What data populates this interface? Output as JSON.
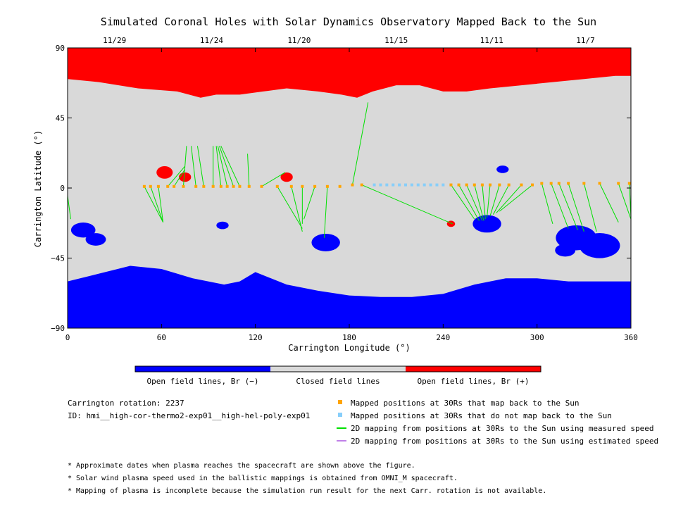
{
  "chart_data": {
    "type": "heatmap",
    "title": "Simulated Coronal Holes with Solar Dynamics Observatory Mapped Back to the Sun",
    "xlabel": "Carrington Longitude (°)",
    "ylabel": "Carrington Latitude (°)",
    "xlim": [
      0,
      360
    ],
    "ylim": [
      -90,
      90
    ],
    "xticks": [
      "0",
      "60",
      "120",
      "180",
      "240",
      "300",
      "360"
    ],
    "xtick_values": [
      0,
      60,
      120,
      180,
      240,
      300,
      360
    ],
    "yticks": [
      "90",
      "45",
      "0",
      "−45",
      "−90"
    ],
    "ytick_values": [
      90,
      45,
      0,
      -45,
      -90
    ],
    "top_axis_dates": [
      {
        "label": "11/29",
        "lon": 30
      },
      {
        "label": "11/24",
        "lon": 92
      },
      {
        "label": "11/20",
        "lon": 148
      },
      {
        "label": "11/15",
        "lon": 210
      },
      {
        "label": "11/11",
        "lon": 271
      },
      {
        "label": "11/7",
        "lon": 331
      }
    ],
    "colors": {
      "open_negative": "#0000ff",
      "closed": "#d9d9d9",
      "open_positive": "#ff0000",
      "mapped": "#ffa500",
      "unmapped": "#87cefa",
      "measured_line": "#00e000",
      "estimated_line": "#c080e8"
    },
    "regions": {
      "north_polar_cap": {
        "field": "positive",
        "boundary": [
          [
            0,
            70
          ],
          [
            20,
            68
          ],
          [
            45,
            64
          ],
          [
            70,
            62
          ],
          [
            85,
            58
          ],
          [
            95,
            60
          ],
          [
            110,
            60
          ],
          [
            125,
            62
          ],
          [
            140,
            64
          ],
          [
            160,
            62
          ],
          [
            175,
            60
          ],
          [
            185,
            58
          ],
          [
            195,
            62
          ],
          [
            210,
            66
          ],
          [
            225,
            66
          ],
          [
            240,
            62
          ],
          [
            255,
            62
          ],
          [
            270,
            64
          ],
          [
            290,
            66
          ],
          [
            310,
            68
          ],
          [
            330,
            70
          ],
          [
            350,
            72
          ],
          [
            360,
            72
          ]
        ]
      },
      "south_polar_cap": {
        "field": "negative",
        "boundary": [
          [
            0,
            -60
          ],
          [
            20,
            -55
          ],
          [
            40,
            -50
          ],
          [
            60,
            -52
          ],
          [
            80,
            -58
          ],
          [
            100,
            -62
          ],
          [
            110,
            -60
          ],
          [
            120,
            -54
          ],
          [
            130,
            -58
          ],
          [
            140,
            -62
          ],
          [
            160,
            -66
          ],
          [
            180,
            -69
          ],
          [
            200,
            -70
          ],
          [
            220,
            -70
          ],
          [
            240,
            -68
          ],
          [
            260,
            -62
          ],
          [
            280,
            -58
          ],
          [
            300,
            -58
          ],
          [
            320,
            -60
          ],
          [
            340,
            -60
          ],
          [
            360,
            -60
          ]
        ]
      },
      "positive_patches": [
        {
          "lon": 62,
          "lat": 10,
          "r": 4
        },
        {
          "lon": 75,
          "lat": 7,
          "r": 3
        },
        {
          "lon": 140,
          "lat": 7,
          "r": 3
        },
        {
          "lon": 245,
          "lat": -23,
          "r": 2
        }
      ],
      "negative_patches": [
        {
          "lon": 10,
          "lat": -27,
          "r": 6
        },
        {
          "lon": 18,
          "lat": -33,
          "r": 5
        },
        {
          "lon": 99,
          "lat": -24,
          "r": 3
        },
        {
          "lon": 165,
          "lat": -35,
          "r": 7
        },
        {
          "lon": 268,
          "lat": -23,
          "r": 7
        },
        {
          "lon": 278,
          "lat": 12,
          "r": 3
        },
        {
          "lon": 325,
          "lat": -32,
          "r": 10
        },
        {
          "lon": 340,
          "lat": -37,
          "r": 10
        },
        {
          "lon": 318,
          "lat": -40,
          "r": 5
        }
      ]
    },
    "mapped_points": [
      {
        "lon": 49,
        "lat": 1,
        "mapped": true
      },
      {
        "lon": 53,
        "lat": 1,
        "mapped": true
      },
      {
        "lon": 58,
        "lat": 1,
        "mapped": true
      },
      {
        "lon": 64,
        "lat": 1,
        "mapped": true
      },
      {
        "lon": 68,
        "lat": 1,
        "mapped": true
      },
      {
        "lon": 74,
        "lat": 1,
        "mapped": true
      },
      {
        "lon": 82,
        "lat": 1,
        "mapped": true
      },
      {
        "lon": 87,
        "lat": 1,
        "mapped": true
      },
      {
        "lon": 93,
        "lat": 1,
        "mapped": true
      },
      {
        "lon": 98,
        "lat": 1,
        "mapped": true
      },
      {
        "lon": 102,
        "lat": 1,
        "mapped": true
      },
      {
        "lon": 106,
        "lat": 1,
        "mapped": true
      },
      {
        "lon": 110,
        "lat": 1,
        "mapped": true
      },
      {
        "lon": 116,
        "lat": 1,
        "mapped": true
      },
      {
        "lon": 124,
        "lat": 1,
        "mapped": true
      },
      {
        "lon": 134,
        "lat": 1,
        "mapped": true
      },
      {
        "lon": 143,
        "lat": 1,
        "mapped": true
      },
      {
        "lon": 150,
        "lat": 1,
        "mapped": true
      },
      {
        "lon": 158,
        "lat": 1,
        "mapped": true
      },
      {
        "lon": 166,
        "lat": 1,
        "mapped": true
      },
      {
        "lon": 174,
        "lat": 1,
        "mapped": true
      },
      {
        "lon": 182,
        "lat": 2,
        "mapped": true
      },
      {
        "lon": 188,
        "lat": 2,
        "mapped": true
      },
      {
        "lon": 196,
        "lat": 2,
        "mapped": false
      },
      {
        "lon": 200,
        "lat": 2,
        "mapped": false
      },
      {
        "lon": 204,
        "lat": 2,
        "mapped": false
      },
      {
        "lon": 208,
        "lat": 2,
        "mapped": false
      },
      {
        "lon": 212,
        "lat": 2,
        "mapped": false
      },
      {
        "lon": 216,
        "lat": 2,
        "mapped": false
      },
      {
        "lon": 220,
        "lat": 2,
        "mapped": false
      },
      {
        "lon": 224,
        "lat": 2,
        "mapped": false
      },
      {
        "lon": 228,
        "lat": 2,
        "mapped": false
      },
      {
        "lon": 232,
        "lat": 2,
        "mapped": false
      },
      {
        "lon": 236,
        "lat": 2,
        "mapped": false
      },
      {
        "lon": 240,
        "lat": 2,
        "mapped": false
      },
      {
        "lon": 245,
        "lat": 2,
        "mapped": true
      },
      {
        "lon": 250,
        "lat": 2,
        "mapped": true
      },
      {
        "lon": 255,
        "lat": 2,
        "mapped": true
      },
      {
        "lon": 260,
        "lat": 2,
        "mapped": true
      },
      {
        "lon": 265,
        "lat": 2,
        "mapped": true
      },
      {
        "lon": 270,
        "lat": 2,
        "mapped": true
      },
      {
        "lon": 276,
        "lat": 2,
        "mapped": true
      },
      {
        "lon": 282,
        "lat": 2,
        "mapped": true
      },
      {
        "lon": 290,
        "lat": 2,
        "mapped": true
      },
      {
        "lon": 297,
        "lat": 2,
        "mapped": true
      },
      {
        "lon": 303,
        "lat": 3,
        "mapped": true
      },
      {
        "lon": 309,
        "lat": 3,
        "mapped": true
      },
      {
        "lon": 314,
        "lat": 3,
        "mapped": true
      },
      {
        "lon": 320,
        "lat": 3,
        "mapped": true
      },
      {
        "lon": 330,
        "lat": 3,
        "mapped": true
      },
      {
        "lon": 340,
        "lat": 3,
        "mapped": true
      },
      {
        "lon": 352,
        "lat": 3,
        "mapped": true
      },
      {
        "lon": 359,
        "lat": 3,
        "mapped": true
      }
    ],
    "field_lines": [
      {
        "from": [
          49,
          1
        ],
        "to": [
          61,
          -22
        ]
      },
      {
        "from": [
          53,
          1
        ],
        "to": [
          61,
          -22
        ]
      },
      {
        "from": [
          58,
          1
        ],
        "to": [
          61,
          -22
        ]
      },
      {
        "from": [
          64,
          1
        ],
        "to": [
          75,
          14
        ]
      },
      {
        "from": [
          68,
          1
        ],
        "to": [
          75,
          12
        ]
      },
      {
        "from": [
          74,
          1
        ],
        "to": [
          76,
          27
        ]
      },
      {
        "from": [
          82,
          1
        ],
        "to": [
          79,
          27
        ]
      },
      {
        "from": [
          87,
          1
        ],
        "to": [
          83,
          27
        ]
      },
      {
        "from": [
          93,
          1
        ],
        "to": [
          93,
          27
        ]
      },
      {
        "from": [
          98,
          1
        ],
        "to": [
          95,
          27
        ]
      },
      {
        "from": [
          102,
          1
        ],
        "to": [
          96,
          27
        ]
      },
      {
        "from": [
          106,
          1
        ],
        "to": [
          97,
          27
        ]
      },
      {
        "from": [
          110,
          1
        ],
        "to": [
          98,
          27
        ]
      },
      {
        "from": [
          116,
          1
        ],
        "to": [
          115,
          22
        ]
      },
      {
        "from": [
          124,
          1
        ],
        "to": [
          139,
          10
        ]
      },
      {
        "from": [
          134,
          1
        ],
        "to": [
          150,
          -26
        ]
      },
      {
        "from": [
          143,
          1
        ],
        "to": [
          150,
          -28
        ]
      },
      {
        "from": [
          150,
          1
        ],
        "to": [
          150,
          -23
        ]
      },
      {
        "from": [
          158,
          1
        ],
        "to": [
          151,
          -20
        ]
      },
      {
        "from": [
          166,
          1
        ],
        "to": [
          164,
          -32
        ]
      },
      {
        "from": [
          182,
          2
        ],
        "to": [
          192,
          55
        ]
      },
      {
        "from": [
          188,
          2
        ],
        "to": [
          246,
          -23
        ]
      },
      {
        "from": [
          245,
          2
        ],
        "to": [
          260,
          -20
        ]
      },
      {
        "from": [
          250,
          2
        ],
        "to": [
          263,
          -21
        ]
      },
      {
        "from": [
          255,
          2
        ],
        "to": [
          265,
          -21
        ]
      },
      {
        "from": [
          260,
          2
        ],
        "to": [
          266,
          -21
        ]
      },
      {
        "from": [
          265,
          2
        ],
        "to": [
          267,
          -20
        ]
      },
      {
        "from": [
          270,
          2
        ],
        "to": [
          268,
          -19
        ]
      },
      {
        "from": [
          276,
          2
        ],
        "to": [
          270,
          -18
        ]
      },
      {
        "from": [
          282,
          2
        ],
        "to": [
          272,
          -17
        ]
      },
      {
        "from": [
          290,
          2
        ],
        "to": [
          274,
          -16
        ]
      },
      {
        "from": [
          297,
          2
        ],
        "to": [
          276,
          -15
        ]
      },
      {
        "from": [
          303,
          3
        ],
        "to": [
          310,
          -23
        ]
      },
      {
        "from": [
          309,
          3
        ],
        "to": [
          320,
          -26
        ]
      },
      {
        "from": [
          314,
          3
        ],
        "to": [
          326,
          -27
        ]
      },
      {
        "from": [
          320,
          3
        ],
        "to": [
          330,
          -28
        ]
      },
      {
        "from": [
          330,
          3
        ],
        "to": [
          338,
          -28
        ]
      },
      {
        "from": [
          340,
          3
        ],
        "to": [
          352,
          -22
        ]
      },
      {
        "from": [
          352,
          3
        ],
        "to": [
          360,
          -20
        ]
      },
      {
        "from": [
          359,
          3
        ],
        "to": [
          360,
          -19
        ]
      },
      {
        "from": [
          0,
          -5
        ],
        "to": [
          2,
          -20
        ]
      }
    ],
    "colorbar": {
      "labels": [
        "Open field lines, Br (−)",
        "Closed field lines",
        "Open field lines, Br (+)"
      ]
    },
    "legend": [
      {
        "kind": "square",
        "color_key": "mapped",
        "label": "Mapped positions at 30Rs that map back to the Sun"
      },
      {
        "kind": "square",
        "color_key": "unmapped",
        "label": "Mapped positions at 30Rs that do not map back to the Sun"
      },
      {
        "kind": "line",
        "color_key": "measured_line",
        "label": "2D mapping from positions at 30Rs to the Sun using measured speed"
      },
      {
        "kind": "line",
        "color_key": "estimated_line",
        "label": "2D mapping from positions at 30Rs to the Sun using estimated speed"
      }
    ]
  },
  "info": {
    "rotation": "Carrington rotation: 2237",
    "id": "ID: hmi__high-cor-thermo2-exp01__high-hel-poly-exp01"
  },
  "footnotes": [
    "* Approximate dates when plasma reaches the spacecraft are shown above the figure.",
    "* Solar wind plasma speed used in the ballistic mappings is obtained from OMNI_M spacecraft.",
    "* Mapping of plasma is incomplete because the simulation run result for the next Carr. rotation is not available."
  ]
}
